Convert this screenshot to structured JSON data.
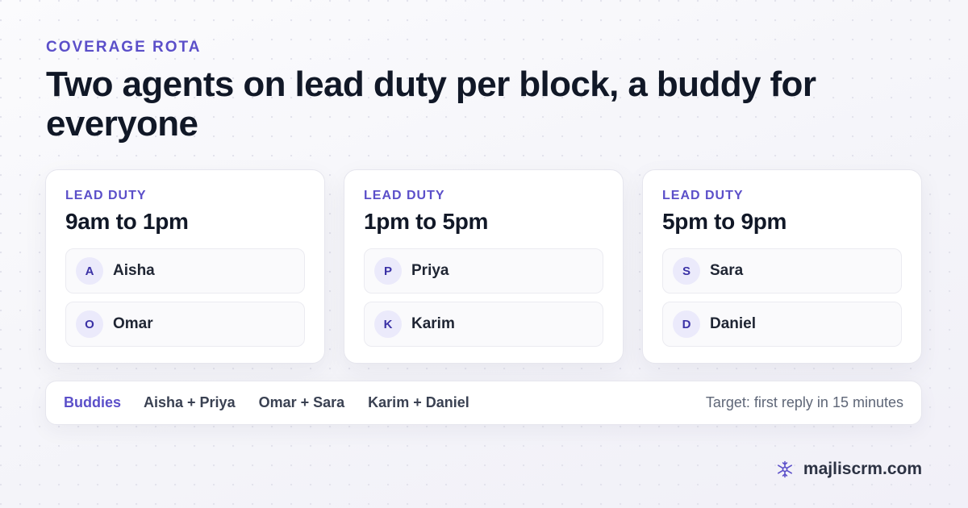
{
  "eyebrow": "COVERAGE ROTA",
  "headline": "Two agents on lead duty per block, a buddy for everyone",
  "blocks": [
    {
      "label": "LEAD DUTY",
      "time": "9am to 1pm",
      "agents": [
        {
          "initial": "A",
          "name": "Aisha"
        },
        {
          "initial": "O",
          "name": "Omar"
        }
      ]
    },
    {
      "label": "LEAD DUTY",
      "time": "1pm to 5pm",
      "agents": [
        {
          "initial": "P",
          "name": "Priya"
        },
        {
          "initial": "K",
          "name": "Karim"
        }
      ]
    },
    {
      "label": "LEAD DUTY",
      "time": "5pm to 9pm",
      "agents": [
        {
          "initial": "S",
          "name": "Sara"
        },
        {
          "initial": "D",
          "name": "Daniel"
        }
      ]
    }
  ],
  "buddies": {
    "label": "Buddies",
    "pairs": [
      "Aisha + Priya",
      "Omar + Sara",
      "Karim + Daniel"
    ],
    "target": "Target: first reply in 15 minutes"
  },
  "brand": {
    "icon": "snowflake-logo-icon",
    "text": "majliscrm.com"
  },
  "colors": {
    "accent": "#5b4fc9",
    "heading": "#111827",
    "avatar_bg": "#ebeafb"
  }
}
